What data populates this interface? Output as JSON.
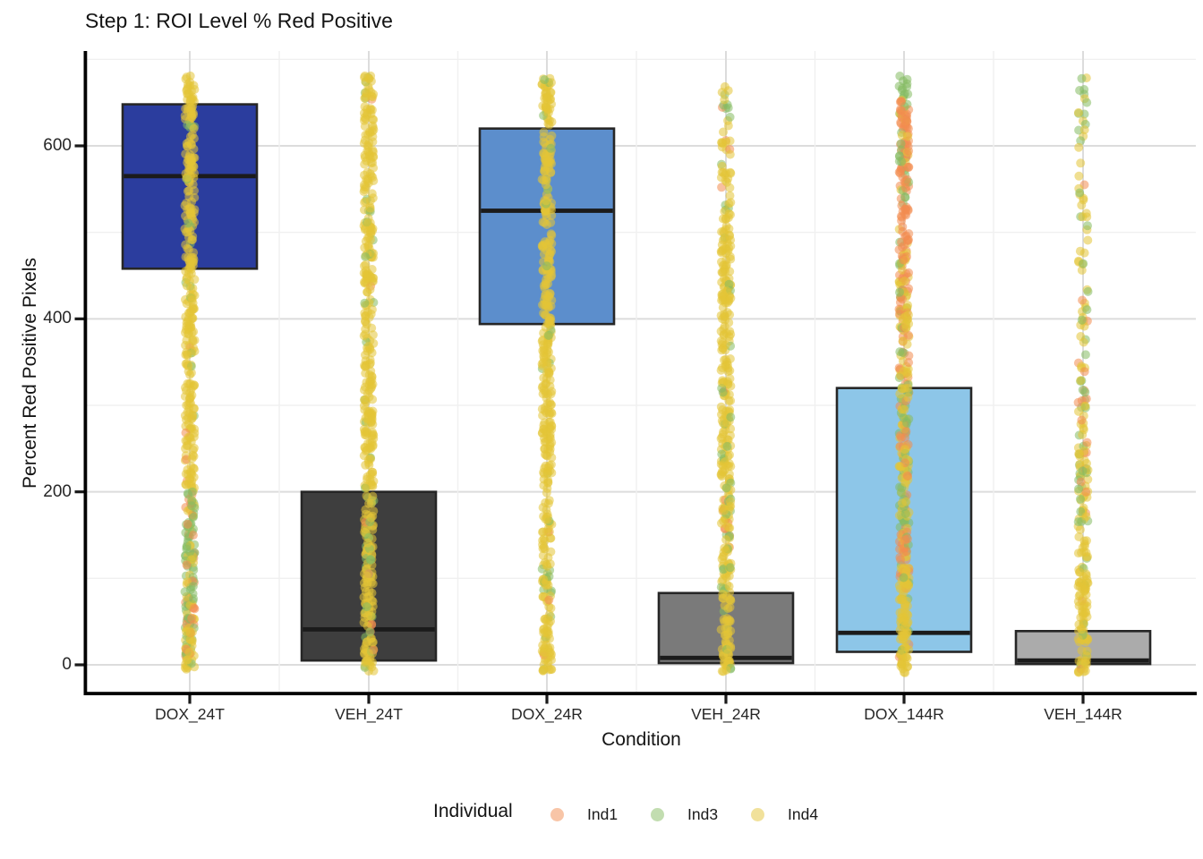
{
  "title": "Step 1: ROI Level % Red Positive",
  "axes": {
    "x_label": "Condition",
    "y_label": "Percent Red Positive Pixels"
  },
  "legend": {
    "title": "Individual",
    "items": [
      {
        "id": "Ind1",
        "label": "Ind1",
        "color": "#F28C50"
      },
      {
        "id": "Ind3",
        "label": "Ind3",
        "color": "#85BB62"
      },
      {
        "id": "Ind4",
        "label": "Ind4",
        "color": "#E3C437"
      }
    ]
  },
  "chart_data": {
    "type": "boxplot_jitter",
    "title": "Step 1: ROI Level % Red Positive",
    "xlabel": "Condition",
    "ylabel": "Percent Red Positive Pixels",
    "categories": [
      "DOX_24T",
      "VEH_24T",
      "DOX_24R",
      "VEH_24R",
      "DOX_144R",
      "VEH_144R"
    ],
    "y_ticks": [
      0,
      200,
      400,
      600
    ],
    "y_minor_ticks": [
      100,
      300,
      500,
      700
    ],
    "ylim": [
      -30,
      710
    ],
    "grid": true,
    "legend_position": "bottom",
    "boxes": [
      {
        "condition": "DOX_24T",
        "fill": "#2B3D9E",
        "q1": 458,
        "median": 565,
        "q3": 648
      },
      {
        "condition": "VEH_24T",
        "fill": "#3E3E3E",
        "q1": 5,
        "median": 41,
        "q3": 200
      },
      {
        "condition": "DOX_24R",
        "fill": "#5C8ECC",
        "q1": 394,
        "median": 525,
        "q3": 620
      },
      {
        "condition": "VEH_24R",
        "fill": "#7A7A7A",
        "q1": 2,
        "median": 8,
        "q3": 83
      },
      {
        "condition": "DOX_144R",
        "fill": "#8DC6E8",
        "q1": 15,
        "median": 37,
        "q3": 320
      },
      {
        "condition": "VEH_144R",
        "fill": "#ABABAB",
        "q1": 1,
        "median": 5,
        "q3": 39
      }
    ],
    "point_colors": {
      "Ind4_yellow": "#E3C437",
      "Ind3_green": "#85BB62",
      "Ind1_orange": "#F28C50"
    },
    "point_opacity": 0.55,
    "points_value_range": [
      0,
      680
    ],
    "jitter_profiles": [
      {
        "condition": "DOX_24T",
        "segments": [
          {
            "v0": 629,
            "v1": 681,
            "n": 40,
            "w": {
              "y": 0.95,
              "g": 0.0,
              "o": 0.05
            }
          },
          {
            "v0": 200,
            "v1": 629,
            "n": 260,
            "w": {
              "y": 0.93,
              "g": 0.05,
              "o": 0.02
            }
          },
          {
            "v0": 101,
            "v1": 200,
            "n": 70,
            "w": {
              "y": 0.25,
              "g": 0.6,
              "o": 0.15
            }
          },
          {
            "v0": 39,
            "v1": 101,
            "n": 50,
            "w": {
              "y": 0.3,
              "g": 0.35,
              "o": 0.35
            }
          },
          {
            "v0": -7,
            "v1": 39,
            "n": 45,
            "w": {
              "y": 0.75,
              "g": 0.2,
              "o": 0.05
            }
          }
        ]
      },
      {
        "condition": "VEH_24T",
        "segments": [
          {
            "v0": 653,
            "v1": 681,
            "n": 22,
            "w": {
              "y": 0.7,
              "g": 0.25,
              "o": 0.05
            }
          },
          {
            "v0": 205,
            "v1": 647,
            "n": 270,
            "w": {
              "y": 0.95,
              "g": 0.04,
              "o": 0.01
            }
          },
          {
            "v0": 96,
            "v1": 205,
            "n": 70,
            "w": {
              "y": 0.8,
              "g": 0.17,
              "o": 0.03
            }
          },
          {
            "v0": -8,
            "v1": 96,
            "n": 70,
            "w": {
              "y": 0.85,
              "g": 0.12,
              "o": 0.03
            }
          }
        ]
      },
      {
        "condition": "DOX_24R",
        "segments": [
          {
            "v0": 629,
            "v1": 681,
            "n": 40,
            "w": {
              "y": 0.9,
              "g": 0.08,
              "o": 0.02
            }
          },
          {
            "v0": 117,
            "v1": 629,
            "n": 300,
            "w": {
              "y": 0.96,
              "g": 0.03,
              "o": 0.01
            }
          },
          {
            "v0": 81,
            "v1": 117,
            "n": 25,
            "w": {
              "y": 0.5,
              "g": 0.45,
              "o": 0.05
            }
          },
          {
            "v0": -8,
            "v1": 81,
            "n": 60,
            "w": {
              "y": 0.9,
              "g": 0.08,
              "o": 0.02
            }
          }
        ]
      },
      {
        "condition": "VEH_24R",
        "segments": [
          {
            "v0": 608,
            "v1": 681,
            "n": 14,
            "w": {
              "y": 0.55,
              "g": 0.35,
              "o": 0.1
            }
          },
          {
            "v0": 525,
            "v1": 608,
            "n": 30,
            "w": {
              "y": 0.75,
              "g": 0.15,
              "o": 0.1
            }
          },
          {
            "v0": 205,
            "v1": 525,
            "n": 200,
            "w": {
              "y": 0.94,
              "g": 0.04,
              "o": 0.02
            }
          },
          {
            "v0": 148,
            "v1": 205,
            "n": 40,
            "w": {
              "y": 0.7,
              "g": 0.25,
              "o": 0.05
            }
          },
          {
            "v0": -8,
            "v1": 148,
            "n": 100,
            "w": {
              "y": 0.88,
              "g": 0.1,
              "o": 0.02
            }
          }
        ]
      },
      {
        "condition": "DOX_144R",
        "segments": [
          {
            "v0": 655,
            "v1": 681,
            "n": 12,
            "w": {
              "y": 0.15,
              "g": 0.75,
              "o": 0.1
            }
          },
          {
            "v0": 469,
            "v1": 655,
            "n": 130,
            "w": {
              "y": 0.1,
              "g": 0.15,
              "o": 0.75
            }
          },
          {
            "v0": 324,
            "v1": 469,
            "n": 100,
            "w": {
              "y": 0.35,
              "g": 0.15,
              "o": 0.5
            }
          },
          {
            "v0": 158,
            "v1": 324,
            "n": 110,
            "w": {
              "y": 0.45,
              "g": 0.35,
              "o": 0.2
            }
          },
          {
            "v0": 101,
            "v1": 158,
            "n": 50,
            "w": {
              "y": 0.3,
              "g": 0.15,
              "o": 0.55
            }
          },
          {
            "v0": -10,
            "v1": 101,
            "n": 95,
            "w": {
              "y": 0.9,
              "g": 0.07,
              "o": 0.03
            }
          }
        ]
      },
      {
        "condition": "VEH_144R",
        "segments": [
          {
            "v0": 634,
            "v1": 681,
            "n": 10,
            "w": {
              "y": 0.25,
              "g": 0.65,
              "o": 0.1
            }
          },
          {
            "v0": 324,
            "v1": 634,
            "n": 55,
            "w": {
              "y": 0.5,
              "g": 0.35,
              "o": 0.15
            }
          },
          {
            "v0": 107,
            "v1": 324,
            "n": 90,
            "w": {
              "y": 0.55,
              "g": 0.3,
              "o": 0.15
            }
          },
          {
            "v0": -10,
            "v1": 107,
            "n": 85,
            "w": {
              "y": 0.92,
              "g": 0.06,
              "o": 0.02
            }
          }
        ]
      }
    ]
  }
}
